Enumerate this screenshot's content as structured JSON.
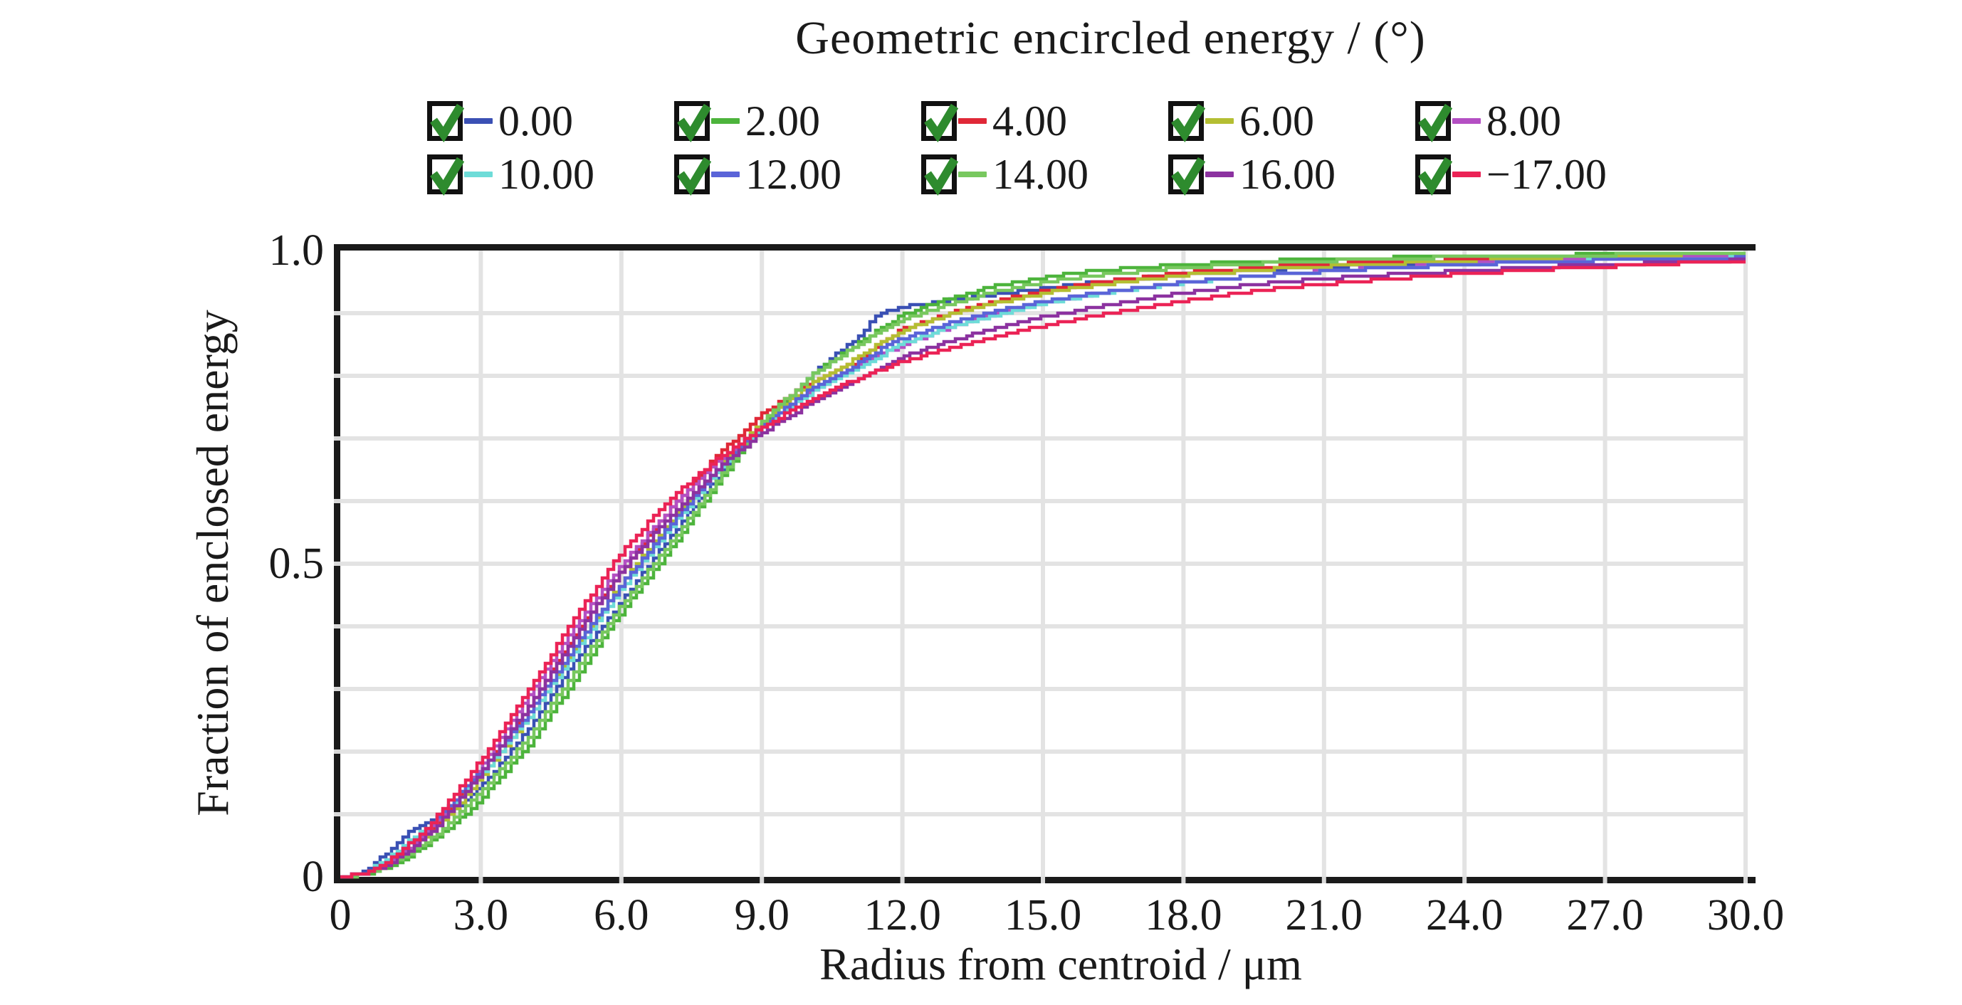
{
  "title": "Geometric encircled energy / (°)",
  "colors": {
    "axis": "#1a1a1a",
    "grid": "#e3e3e3",
    "checkbox_border": "#111111",
    "checkbox_check": "#2e8b2e",
    "text": "#1a1a1a",
    "background": "#ffffff"
  },
  "legend": {
    "columns_per_row": 5,
    "checkbox_state": "checked"
  },
  "chart_data": {
    "type": "line",
    "title": "Geometric encircled energy / (°)",
    "xlabel": "Radius from centroid / μm",
    "ylabel": "Fraction of enclosed energy",
    "xlim": [
      0,
      30
    ],
    "ylim": [
      0,
      1
    ],
    "x_tick_labels": [
      "0",
      "3.0",
      "6.0",
      "9.0",
      "12.0",
      "15.0",
      "18.0",
      "21.0",
      "24.0",
      "27.0",
      "30.0"
    ],
    "x_tick_values": [
      0,
      3,
      6,
      9,
      12,
      15,
      18,
      21,
      24,
      27,
      30
    ],
    "y_tick_labels": [
      "1.0",
      "0.5",
      "0"
    ],
    "y_tick_values": [
      1.0,
      0.5,
      0
    ],
    "y_grid_step": 0.1,
    "grid": true,
    "legend_position": "top",
    "x": [
      0,
      0.5,
      1,
      1.5,
      2,
      2.5,
      3,
      4,
      5,
      6,
      7,
      8,
      9,
      10,
      11,
      11.5,
      12,
      13,
      14,
      15,
      16,
      18,
      20,
      22,
      24,
      26,
      28,
      30
    ],
    "series": [
      {
        "name": "0.00",
        "color": "#3a50b4",
        "checked": true,
        "values": [
          0,
          0.008,
          0.04,
          0.075,
          0.095,
          0.11,
          0.145,
          0.235,
          0.345,
          0.44,
          0.54,
          0.635,
          0.725,
          0.8,
          0.86,
          0.9,
          0.91,
          0.921,
          0.93,
          0.94,
          0.949,
          0.962,
          0.97,
          0.977,
          0.982,
          0.986,
          0.989,
          0.991
        ]
      },
      {
        "name": "2.00",
        "color": "#4db43c",
        "checked": true,
        "values": [
          0,
          0.004,
          0.015,
          0.035,
          0.06,
          0.09,
          0.125,
          0.21,
          0.315,
          0.425,
          0.52,
          0.625,
          0.725,
          0.8,
          0.85,
          0.875,
          0.898,
          0.924,
          0.944,
          0.957,
          0.967,
          0.978,
          0.984,
          0.988,
          0.991,
          0.993,
          0.994,
          0.995
        ]
      },
      {
        "name": "4.00",
        "color": "#e02837",
        "checked": true,
        "values": [
          0,
          0.005,
          0.02,
          0.05,
          0.08,
          0.125,
          0.17,
          0.27,
          0.39,
          0.49,
          0.585,
          0.67,
          0.74,
          0.79,
          0.822,
          0.85,
          0.875,
          0.9,
          0.92,
          0.935,
          0.948,
          0.965,
          0.975,
          0.981,
          0.985,
          0.988,
          0.99,
          0.992
        ]
      },
      {
        "name": "6.00",
        "color": "#b4be32",
        "checked": true,
        "values": [
          0,
          0.005,
          0.02,
          0.045,
          0.075,
          0.115,
          0.16,
          0.255,
          0.365,
          0.47,
          0.565,
          0.65,
          0.728,
          0.785,
          0.828,
          0.852,
          0.873,
          0.898,
          0.917,
          0.932,
          0.944,
          0.961,
          0.971,
          0.978,
          0.983,
          0.987,
          0.99,
          0.992
        ]
      },
      {
        "name": "8.00",
        "color": "#b44fc3",
        "checked": true,
        "values": [
          0,
          0.005,
          0.022,
          0.05,
          0.085,
          0.13,
          0.178,
          0.29,
          0.4,
          0.5,
          0.585,
          0.66,
          0.72,
          0.775,
          0.815,
          0.833,
          0.85,
          0.878,
          0.9,
          0.917,
          0.93,
          0.95,
          0.962,
          0.972,
          0.979,
          0.984,
          0.988,
          0.99
        ]
      },
      {
        "name": "10.00",
        "color": "#6edcd8",
        "checked": true,
        "values": [
          0,
          0.006,
          0.03,
          0.06,
          0.09,
          0.125,
          0.165,
          0.255,
          0.36,
          0.462,
          0.555,
          0.645,
          0.72,
          0.772,
          0.812,
          0.832,
          0.852,
          0.878,
          0.898,
          0.915,
          0.929,
          0.949,
          0.962,
          0.971,
          0.978,
          0.983,
          0.987,
          0.989
        ]
      },
      {
        "name": "12.00",
        "color": "#5a64d8",
        "checked": true,
        "values": [
          0,
          0.005,
          0.025,
          0.055,
          0.09,
          0.13,
          0.17,
          0.262,
          0.37,
          0.468,
          0.56,
          0.648,
          0.722,
          0.778,
          0.818,
          0.842,
          0.86,
          0.884,
          0.904,
          0.919,
          0.931,
          0.95,
          0.962,
          0.971,
          0.978,
          0.983,
          0.986,
          0.989
        ]
      },
      {
        "name": "14.00",
        "color": "#78c85f",
        "checked": true,
        "values": [
          0,
          0.004,
          0.018,
          0.04,
          0.065,
          0.1,
          0.138,
          0.222,
          0.33,
          0.435,
          0.53,
          0.63,
          0.728,
          0.798,
          0.848,
          0.87,
          0.89,
          0.915,
          0.935,
          0.949,
          0.96,
          0.973,
          0.981,
          0.986,
          0.99,
          0.992,
          0.994,
          0.995
        ]
      },
      {
        "name": "16.00",
        "color": "#8c32a0",
        "checked": true,
        "values": [
          0,
          0.005,
          0.02,
          0.045,
          0.078,
          0.12,
          0.168,
          0.272,
          0.385,
          0.49,
          0.575,
          0.65,
          0.71,
          0.755,
          0.793,
          0.812,
          0.83,
          0.856,
          0.877,
          0.894,
          0.908,
          0.933,
          0.95,
          0.96,
          0.968,
          0.975,
          0.98,
          0.985
        ]
      },
      {
        "name": "−17.00",
        "color": "#eb2356",
        "checked": true,
        "values": [
          0,
          0.006,
          0.025,
          0.055,
          0.092,
          0.138,
          0.188,
          0.298,
          0.415,
          0.52,
          0.602,
          0.665,
          0.718,
          0.762,
          0.795,
          0.81,
          0.823,
          0.845,
          0.864,
          0.88,
          0.895,
          0.92,
          0.94,
          0.953,
          0.963,
          0.971,
          0.978,
          0.984
        ]
      }
    ]
  }
}
